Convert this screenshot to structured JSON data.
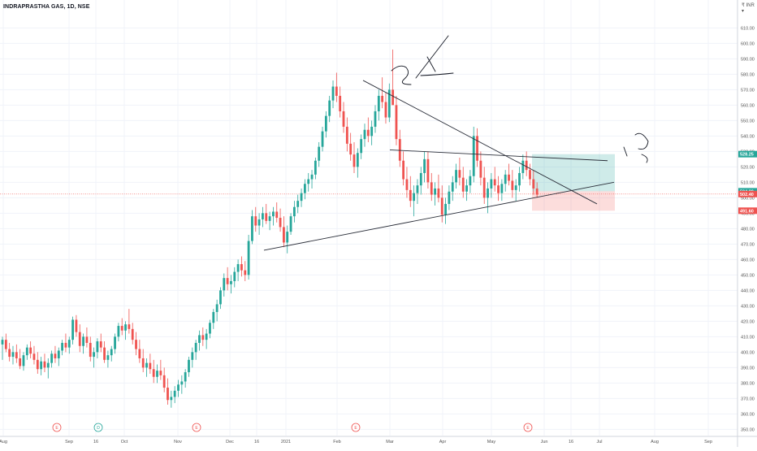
{
  "header": {
    "title": "INDRAPRASTHA GAS, 1D, NSE",
    "currency_marker": "₹ INR ▾"
  },
  "chart_data": {
    "type": "candlestick",
    "symbol": "INDRAPRASTHA GAS",
    "interval": "1D",
    "exchange": "NSE",
    "ylim": [
      350,
      615
    ],
    "price_ticks": [
      610,
      600,
      590,
      580,
      570,
      560,
      550,
      540,
      530,
      520,
      510,
      500,
      490,
      480,
      470,
      460,
      450,
      440,
      430,
      420,
      410,
      400,
      390,
      380,
      370,
      360,
      350
    ],
    "time_labels": [
      "Aug",
      "Sep",
      "16",
      "Oct",
      "Nov",
      "Dec",
      "16",
      "2021",
      "Feb",
      "Mar",
      "Apr",
      "May",
      "Jun",
      "16",
      "Jul",
      "Aug",
      "Sep"
    ],
    "price_labels": [
      {
        "value": 528.25,
        "text": "528.25",
        "color": "#26a69a"
      },
      {
        "value": 504.2,
        "text": "504.20",
        "color": "#26a69a"
      },
      {
        "value": 502.4,
        "text": "502.40",
        "color": "#ef5350"
      },
      {
        "value": 491.6,
        "text": "491.60",
        "color": "#ef5350"
      }
    ],
    "events": [
      {
        "letter": "E",
        "near": "Sep",
        "color": "#ef5350"
      },
      {
        "letter": "D",
        "near": "Sep 16",
        "color": "#26a69a"
      },
      {
        "letter": "E",
        "near": "Nov",
        "color": "#ef5350"
      },
      {
        "letter": "E",
        "near": "Feb",
        "color": "#ef5350"
      },
      {
        "letter": "E",
        "near": "May",
        "color": "#ef5350"
      }
    ],
    "ohlc_approx": [
      [
        405,
        410,
        395,
        408
      ],
      [
        408,
        412,
        400,
        402
      ],
      [
        402,
        406,
        394,
        397
      ],
      [
        397,
        404,
        392,
        400
      ],
      [
        400,
        405,
        393,
        396
      ],
      [
        396,
        402,
        389,
        391
      ],
      [
        391,
        400,
        388,
        398
      ],
      [
        398,
        405,
        395,
        403
      ],
      [
        403,
        407,
        396,
        399
      ],
      [
        399,
        404,
        392,
        395
      ],
      [
        395,
        400,
        386,
        389
      ],
      [
        389,
        397,
        385,
        394
      ],
      [
        394,
        399,
        387,
        390
      ],
      [
        390,
        396,
        383,
        393
      ],
      [
        393,
        401,
        390,
        399
      ],
      [
        399,
        404,
        393,
        396
      ],
      [
        396,
        403,
        391,
        401
      ],
      [
        401,
        408,
        398,
        406
      ],
      [
        406,
        412,
        400,
        403
      ],
      [
        403,
        410,
        399,
        408
      ],
      [
        408,
        423,
        405,
        421
      ],
      [
        421,
        424,
        410,
        413
      ],
      [
        413,
        418,
        400,
        404
      ],
      [
        404,
        412,
        399,
        410
      ],
      [
        410,
        416,
        403,
        406
      ],
      [
        406,
        410,
        394,
        397
      ],
      [
        397,
        403,
        390,
        400
      ],
      [
        400,
        409,
        396,
        407
      ],
      [
        407,
        412,
        400,
        403
      ],
      [
        403,
        407,
        393,
        395
      ],
      [
        395,
        401,
        390,
        398
      ],
      [
        398,
        404,
        394,
        402
      ],
      [
        402,
        412,
        399,
        410
      ],
      [
        410,
        419,
        407,
        417
      ],
      [
        417,
        422,
        411,
        414
      ],
      [
        414,
        420,
        408,
        418
      ],
      [
        418,
        428,
        412,
        415
      ],
      [
        415,
        419,
        405,
        408
      ],
      [
        408,
        413,
        398,
        402
      ],
      [
        402,
        408,
        393,
        396
      ],
      [
        396,
        402,
        387,
        390
      ],
      [
        390,
        396,
        384,
        393
      ],
      [
        393,
        399,
        386,
        389
      ],
      [
        389,
        395,
        380,
        384
      ],
      [
        384,
        392,
        380,
        388
      ],
      [
        388,
        395,
        382,
        385
      ],
      [
        385,
        390,
        374,
        377
      ],
      [
        377,
        383,
        366,
        369
      ],
      [
        369,
        375,
        364,
        371
      ],
      [
        371,
        378,
        367,
        375
      ],
      [
        375,
        382,
        371,
        379
      ],
      [
        379,
        385,
        373,
        381
      ],
      [
        381,
        389,
        377,
        387
      ],
      [
        387,
        397,
        384,
        395
      ],
      [
        395,
        403,
        390,
        400
      ],
      [
        400,
        408,
        395,
        406
      ],
      [
        406,
        414,
        401,
        411
      ],
      [
        411,
        416,
        404,
        408
      ],
      [
        408,
        415,
        402,
        412
      ],
      [
        412,
        421,
        409,
        419
      ],
      [
        419,
        428,
        415,
        426
      ],
      [
        426,
        434,
        420,
        431
      ],
      [
        431,
        442,
        428,
        440
      ],
      [
        440,
        451,
        436,
        448
      ],
      [
        448,
        455,
        440,
        444
      ],
      [
        444,
        450,
        438,
        446
      ],
      [
        446,
        455,
        442,
        452
      ],
      [
        452,
        460,
        446,
        457
      ],
      [
        457,
        462,
        449,
        453
      ],
      [
        453,
        459,
        446,
        450
      ],
      [
        450,
        476,
        447,
        472
      ],
      [
        472,
        492,
        470,
        488
      ],
      [
        488,
        494,
        478,
        482
      ],
      [
        482,
        490,
        476,
        486
      ],
      [
        486,
        494,
        481,
        490
      ],
      [
        490,
        496,
        483,
        485
      ],
      [
        485,
        491,
        479,
        488
      ],
      [
        488,
        494,
        482,
        491
      ],
      [
        491,
        497,
        484,
        487
      ],
      [
        487,
        493,
        478,
        481
      ],
      [
        481,
        488,
        468,
        471
      ],
      [
        471,
        482,
        464,
        478
      ],
      [
        478,
        490,
        476,
        488
      ],
      [
        488,
        498,
        484,
        494
      ],
      [
        494,
        502,
        490,
        498
      ],
      [
        498,
        506,
        494,
        503
      ],
      [
        503,
        512,
        499,
        509
      ],
      [
        509,
        516,
        504,
        512
      ],
      [
        512,
        518,
        506,
        515
      ],
      [
        515,
        526,
        512,
        524
      ],
      [
        524,
        536,
        520,
        533
      ],
      [
        533,
        546,
        530,
        543
      ],
      [
        543,
        556,
        539,
        553
      ],
      [
        553,
        566,
        549,
        563
      ],
      [
        563,
        576,
        558,
        572
      ],
      [
        572,
        581,
        562,
        566
      ],
      [
        566,
        572,
        552,
        556
      ],
      [
        556,
        562,
        542,
        546
      ],
      [
        546,
        552,
        530,
        535
      ],
      [
        535,
        542,
        524,
        528
      ],
      [
        528,
        536,
        516,
        520
      ],
      [
        520,
        532,
        513,
        529
      ],
      [
        529,
        541,
        525,
        538
      ],
      [
        538,
        548,
        533,
        544
      ],
      [
        544,
        552,
        536,
        540
      ],
      [
        540,
        550,
        534,
        546
      ],
      [
        546,
        560,
        542,
        556
      ],
      [
        556,
        570,
        550,
        566
      ],
      [
        566,
        578,
        558,
        562
      ],
      [
        562,
        568,
        548,
        552
      ],
      [
        552,
        574,
        549,
        570
      ],
      [
        570,
        596,
        564,
        560
      ],
      [
        560,
        566,
        534,
        538
      ],
      [
        538,
        544,
        520,
        524
      ],
      [
        524,
        530,
        508,
        512
      ],
      [
        512,
        520,
        500,
        505
      ],
      [
        505,
        514,
        494,
        498
      ],
      [
        498,
        508,
        488,
        503
      ],
      [
        503,
        512,
        496,
        508
      ],
      [
        508,
        520,
        502,
        516
      ],
      [
        516,
        530,
        510,
        525
      ],
      [
        525,
        530,
        506,
        510
      ],
      [
        510,
        516,
        498,
        502
      ],
      [
        502,
        510,
        495,
        506
      ],
      [
        506,
        515,
        497,
        500
      ],
      [
        500,
        508,
        484,
        489
      ],
      [
        489,
        500,
        483,
        496
      ],
      [
        496,
        508,
        492,
        504
      ],
      [
        504,
        514,
        498,
        510
      ],
      [
        510,
        522,
        506,
        518
      ],
      [
        518,
        526,
        508,
        513
      ],
      [
        513,
        520,
        500,
        504
      ],
      [
        504,
        512,
        498,
        508
      ],
      [
        508,
        518,
        503,
        514
      ],
      [
        514,
        546,
        510,
        540
      ],
      [
        540,
        545,
        520,
        524
      ],
      [
        524,
        530,
        508,
        513
      ],
      [
        513,
        520,
        496,
        500
      ],
      [
        500,
        510,
        490,
        506
      ],
      [
        506,
        516,
        500,
        512
      ],
      [
        512,
        520,
        504,
        508
      ],
      [
        508,
        514,
        498,
        503
      ],
      [
        503,
        512,
        498,
        509
      ],
      [
        509,
        518,
        504,
        515
      ],
      [
        515,
        522,
        508,
        511
      ],
      [
        511,
        518,
        500,
        505
      ],
      [
        505,
        512,
        498,
        508
      ],
      [
        508,
        520,
        504,
        516
      ],
      [
        516,
        528,
        512,
        524
      ],
      [
        524,
        530,
        514,
        518
      ],
      [
        518,
        522,
        508,
        512
      ],
      [
        512,
        518,
        502,
        506
      ],
      [
        506,
        510,
        500,
        502
      ]
    ],
    "drawings": {
      "trendlines": [
        {
          "from": [
            "Dec 10",
            466
          ],
          "to": [
            "Jul 7",
            510
          ]
        },
        {
          "from": [
            "Feb 4",
            576
          ],
          "to": [
            "Jun 28",
            496
          ]
        },
        {
          "from": [
            "Mar 1",
            531
          ],
          "to": [
            "Jul 10",
            524
          ]
        }
      ],
      "long_position": {
        "entry": 504.2,
        "target": 528.25,
        "stop": 491.6
      },
      "current_price": 502.4
    }
  },
  "colors": {
    "up": "#26a69a",
    "down": "#ef5350",
    "grid": "#f0f3fa",
    "text": "#131722",
    "target_zone": "rgba(38,166,154,0.22)",
    "stop_zone": "rgba(239,83,80,0.20)"
  }
}
